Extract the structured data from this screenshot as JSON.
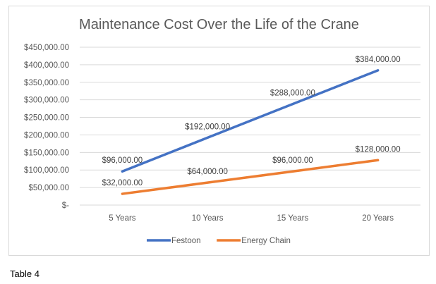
{
  "chart_data": {
    "type": "line",
    "title": "Maintenance Cost Over the Life of the Crane",
    "categories": [
      "5 Years",
      "10 Years",
      "15 Years",
      "20 Years"
    ],
    "series": [
      {
        "name": "Festoon",
        "color": "#4472c4",
        "values": [
          96000,
          192000,
          288000,
          384000
        ],
        "labels": [
          "$96,000.00",
          "$192,000.00",
          "$288,000.00",
          "$384,000.00"
        ]
      },
      {
        "name": "Energy Chain",
        "color": "#ed7d31",
        "values": [
          32000,
          64000,
          96000,
          128000
        ],
        "labels": [
          "$32,000.00",
          "$64,000.00",
          "$96,000.00",
          "$128,000.00"
        ]
      }
    ],
    "ylim": [
      0,
      450000
    ],
    "yticks": [
      0,
      50000,
      100000,
      150000,
      200000,
      250000,
      300000,
      350000,
      400000,
      450000
    ],
    "ytick_labels": [
      "$-",
      "$50,000.00",
      "$100,000.00",
      "$150,000.00",
      "$200,000.00",
      "$250,000.00",
      "$300,000.00",
      "$350,000.00",
      "$400,000.00",
      "$450,000.00"
    ],
    "grid": true,
    "legend": "bottom"
  },
  "caption": "Table 4"
}
